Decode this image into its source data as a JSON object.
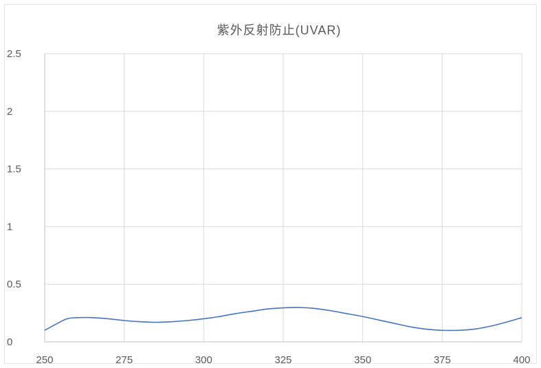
{
  "chart_data": {
    "type": "line",
    "title": "紫外反射防止(UVAR)",
    "xlabel": "",
    "ylabel": "",
    "xlim": [
      250,
      400
    ],
    "ylim": [
      0,
      2.5
    ],
    "x_ticks": [
      250,
      275,
      300,
      325,
      350,
      375,
      400
    ],
    "y_ticks": [
      0,
      0.5,
      1,
      1.5,
      2,
      2.5
    ],
    "x_tick_labels": [
      "250",
      "275",
      "300",
      "325",
      "350",
      "375",
      "400"
    ],
    "y_tick_labels": [
      "0",
      "0.5",
      "1",
      "1.5",
      "2",
      "2.5"
    ],
    "grid": true,
    "legend": "none",
    "series_color": "#4472c4",
    "series": [
      {
        "x": [
          250,
          254,
          257,
          260,
          265,
          270,
          275,
          280,
          285,
          290,
          295,
          300,
          305,
          310,
          315,
          320,
          325,
          330,
          335,
          340,
          345,
          350,
          355,
          360,
          365,
          370,
          375,
          380,
          385,
          390,
          395,
          400
        ],
        "y": [
          0.1,
          0.16,
          0.2,
          0.21,
          0.21,
          0.2,
          0.185,
          0.175,
          0.17,
          0.175,
          0.185,
          0.2,
          0.22,
          0.245,
          0.265,
          0.285,
          0.295,
          0.298,
          0.29,
          0.27,
          0.245,
          0.22,
          0.19,
          0.16,
          0.13,
          0.11,
          0.1,
          0.1,
          0.11,
          0.135,
          0.17,
          0.21
        ]
      }
    ]
  }
}
